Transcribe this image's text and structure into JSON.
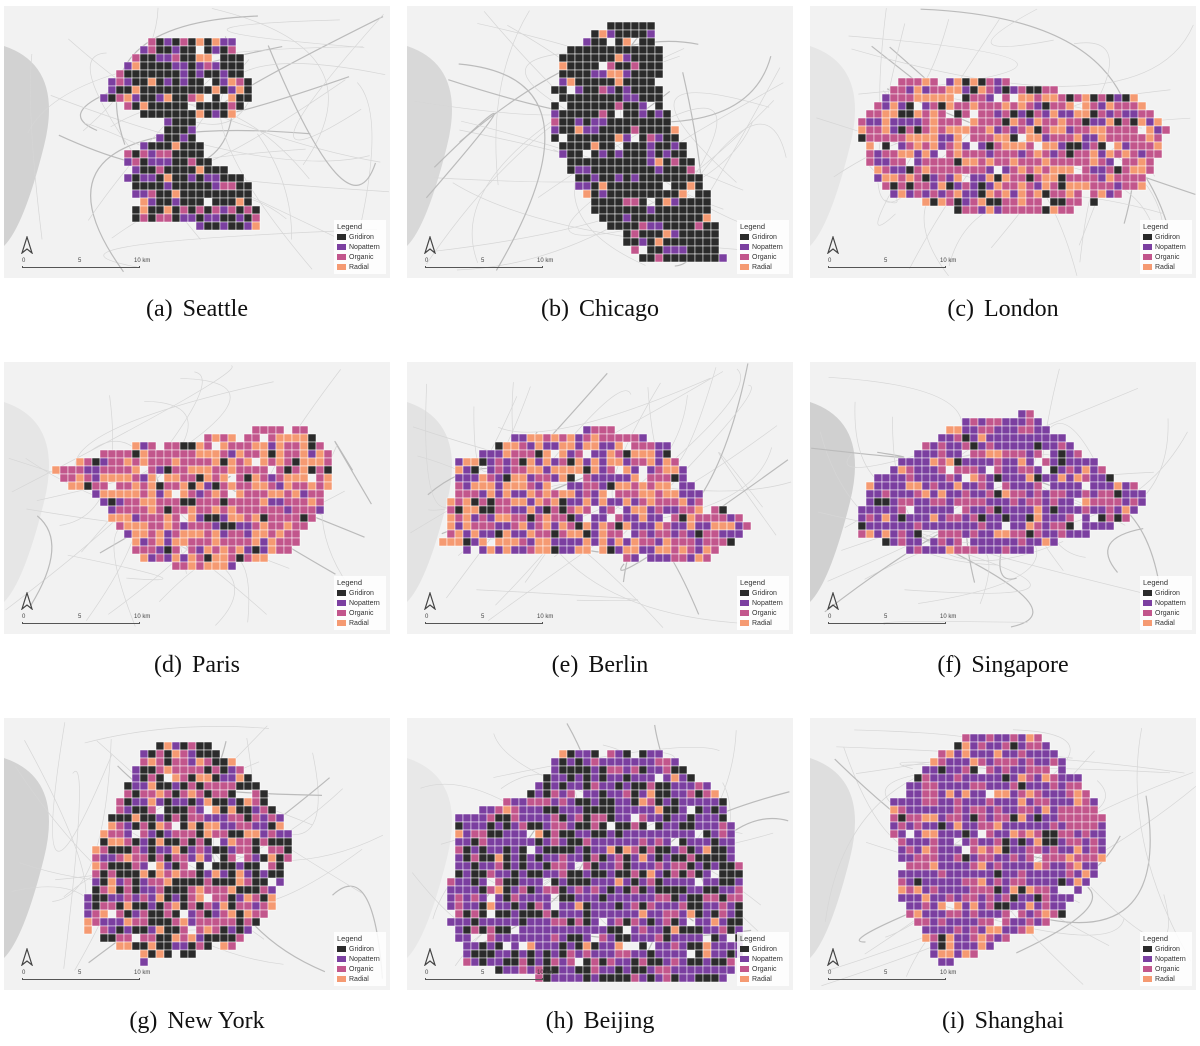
{
  "legend": {
    "title": "Legend",
    "items": [
      {
        "label": "Gridiron",
        "color": "#2b2b2b"
      },
      {
        "label": "Nopattern",
        "color": "#7b3fa0"
      },
      {
        "label": "Organic",
        "color": "#c2568c"
      },
      {
        "label": "Radial",
        "color": "#f59a72"
      }
    ]
  },
  "scalebar": {
    "t0": "0",
    "t1": "5",
    "t2": "10 km"
  },
  "panels": [
    {
      "letter": "(a)",
      "city": "Seattle",
      "mix": [
        0.62,
        0.2,
        0.1,
        0.08
      ],
      "water": "#d2d2d2"
    },
    {
      "letter": "(b)",
      "city": "Chicago",
      "mix": [
        0.78,
        0.12,
        0.05,
        0.05
      ],
      "water": "#d8d8d8"
    },
    {
      "letter": "(c)",
      "city": "London",
      "mix": [
        0.12,
        0.18,
        0.45,
        0.25
      ],
      "water": "#e6e6e6"
    },
    {
      "letter": "(d)",
      "city": "Paris",
      "mix": [
        0.1,
        0.12,
        0.45,
        0.33
      ],
      "water": "#e6e6e6"
    },
    {
      "letter": "(e)",
      "city": "Berlin",
      "mix": [
        0.06,
        0.34,
        0.3,
        0.3
      ],
      "water": "#e3e3e3"
    },
    {
      "letter": "(f)",
      "city": "Singapore",
      "mix": [
        0.06,
        0.58,
        0.26,
        0.1
      ],
      "water": "#d0d0d0"
    },
    {
      "letter": "(g)",
      "city": "New York",
      "mix": [
        0.4,
        0.18,
        0.25,
        0.17
      ],
      "water": "#d2d2d2"
    },
    {
      "letter": "(h)",
      "city": "Beijing",
      "mix": [
        0.3,
        0.48,
        0.18,
        0.04
      ],
      "water": "#e8e8e8"
    },
    {
      "letter": "(i)",
      "city": "Shanghai",
      "mix": [
        0.04,
        0.52,
        0.32,
        0.12
      ],
      "water": "#dedede"
    }
  ]
}
